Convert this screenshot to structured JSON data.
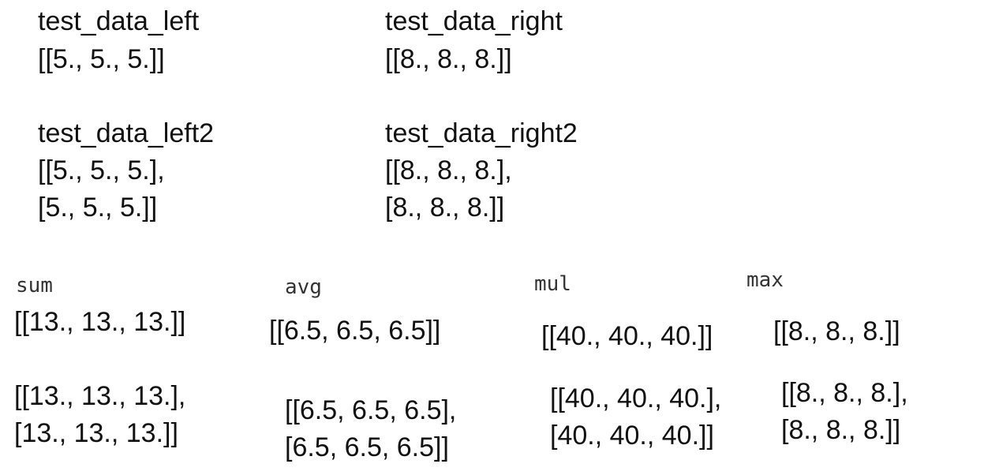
{
  "inputs": {
    "left": {
      "name": "test_data_left",
      "lines": [
        "[[5., 5., 5.]]"
      ]
    },
    "right": {
      "name": "test_data_right",
      "lines": [
        "[[8., 8., 8.]]"
      ]
    },
    "left2": {
      "name": "test_data_left2",
      "lines": [
        "[[5., 5., 5.],",
        "[5., 5., 5.]]"
      ]
    },
    "right2": {
      "name": "test_data_right2",
      "lines": [
        "[[8., 8., 8.],",
        "[8., 8., 8.]]"
      ]
    }
  },
  "results": {
    "sum": {
      "label": "sum",
      "single": [
        "[[13., 13., 13.]]"
      ],
      "double": [
        "[[13., 13., 13.],",
        "[13., 13., 13.]]"
      ]
    },
    "avg": {
      "label": "avg",
      "single": [
        "[[6.5, 6.5, 6.5]]"
      ],
      "double": [
        "[[6.5, 6.5, 6.5],",
        "[6.5, 6.5, 6.5]]"
      ]
    },
    "mul": {
      "label": "mul",
      "single": [
        "[[40., 40., 40.]]"
      ],
      "double": [
        "[[40., 40., 40.],",
        "[40., 40., 40.]]"
      ]
    },
    "max": {
      "label": "max",
      "single": [
        "[[8., 8., 8.]]"
      ],
      "double": [
        "[[8., 8., 8.],",
        "[8., 8., 8.]]"
      ]
    }
  }
}
